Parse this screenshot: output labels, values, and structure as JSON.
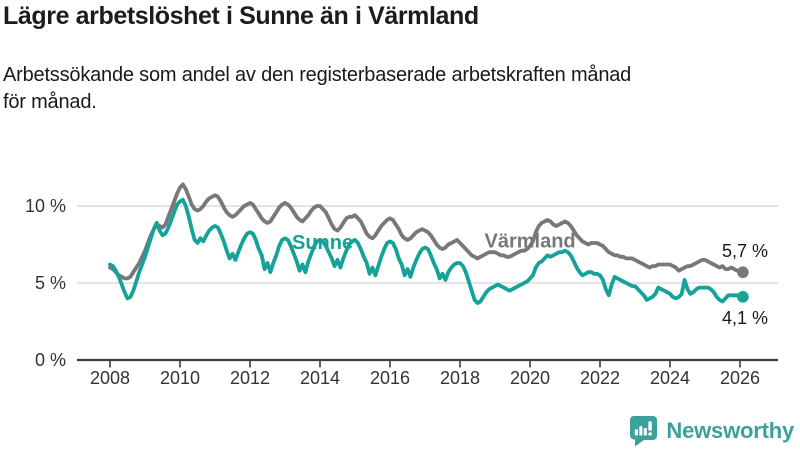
{
  "header": {
    "title": "Lägre arbetslöshet i Sunne än i Värmland",
    "subtitle_lines": [
      "Arbetssökande som andel av den registerbaserade arbetskraften månad",
      "för månad."
    ]
  },
  "footer": {
    "brand": "Newsworthy",
    "brand_color": "#3ba19d"
  },
  "chart_data": {
    "type": "line",
    "title": "Lägre arbetslöshet i Sunne än i Värmland",
    "subtitle": "Arbetssökande som andel av den registerbaserade arbetskraften månad för månad.",
    "x_interval": "monthly",
    "x_start": "2008-01",
    "x_end": "2026-02",
    "x_ticks": [
      2008,
      2010,
      2012,
      2014,
      2016,
      2018,
      2020,
      2022,
      2024,
      2026
    ],
    "y_ticks": [
      {
        "value": 0,
        "label": "0 %"
      },
      {
        "value": 5,
        "label": "5 %"
      },
      {
        "value": 10,
        "label": "10 %"
      }
    ],
    "ylim": [
      0,
      12
    ],
    "grid": "horizontal",
    "legend": "inline-labels",
    "style": {
      "grid_color": "#dcdcdc",
      "axis_color": "#3d3d3d",
      "tick_text_color": "#333333",
      "end_label_color": "#1a1a1a"
    },
    "series": [
      {
        "name": "Värmland",
        "color": "#77777c",
        "end_label": "5,7 %",
        "end_label_side": "above",
        "name_label_pos": {
          "year": 2018.7,
          "value": 7.3
        },
        "values": [
          6.0,
          5.9,
          5.7,
          5.5,
          5.4,
          5.3,
          5.3,
          5.4,
          5.7,
          6.0,
          6.3,
          6.7,
          7.1,
          7.6,
          8.1,
          8.5,
          8.8,
          8.7,
          8.6,
          8.8,
          9.3,
          9.8,
          10.3,
          10.8,
          11.2,
          11.4,
          11.1,
          10.6,
          10.1,
          9.8,
          9.7,
          9.8,
          10.0,
          10.3,
          10.5,
          10.6,
          10.7,
          10.6,
          10.3,
          9.9,
          9.6,
          9.4,
          9.3,
          9.4,
          9.6,
          9.8,
          10.0,
          10.1,
          10.2,
          10.1,
          9.8,
          9.5,
          9.2,
          9.0,
          8.9,
          9.0,
          9.3,
          9.6,
          9.9,
          10.1,
          10.2,
          10.1,
          9.9,
          9.6,
          9.3,
          9.1,
          9.0,
          9.2,
          9.4,
          9.7,
          9.9,
          10.0,
          10.0,
          9.8,
          9.6,
          9.2,
          8.8,
          8.5,
          8.4,
          8.6,
          8.9,
          9.2,
          9.3,
          9.3,
          9.4,
          9.2,
          9.0,
          8.6,
          8.2,
          8.0,
          7.9,
          8.1,
          8.4,
          8.7,
          8.9,
          9.1,
          9.2,
          9.1,
          8.8,
          8.5,
          8.1,
          7.9,
          7.8,
          7.9,
          8.1,
          8.3,
          8.4,
          8.5,
          8.4,
          8.3,
          8.1,
          7.8,
          7.5,
          7.3,
          7.2,
          7.3,
          7.5,
          7.6,
          7.7,
          7.8,
          7.6,
          7.4,
          7.2,
          7.0,
          6.8,
          6.7,
          6.6,
          6.7,
          6.8,
          6.9,
          7.0,
          7.0,
          7.0,
          6.9,
          6.8,
          6.8,
          6.7,
          6.7,
          6.8,
          6.9,
          7.0,
          7.1,
          7.1,
          7.2,
          7.4,
          7.7,
          8.3,
          8.7,
          8.9,
          9.0,
          9.1,
          9.0,
          8.8,
          8.7,
          8.8,
          8.9,
          9.0,
          8.9,
          8.7,
          8.4,
          8.1,
          7.9,
          7.7,
          7.6,
          7.5,
          7.6,
          7.6,
          7.6,
          7.5,
          7.4,
          7.2,
          7.0,
          6.9,
          6.8,
          6.8,
          6.7,
          6.7,
          6.6,
          6.6,
          6.6,
          6.5,
          6.4,
          6.3,
          6.2,
          6.1,
          6.0,
          6.1,
          6.1,
          6.2,
          6.2,
          6.2,
          6.2,
          6.2,
          6.1,
          6.0,
          5.8,
          5.9,
          6.0,
          6.1,
          6.1,
          6.2,
          6.3,
          6.4,
          6.5,
          6.5,
          6.4,
          6.3,
          6.2,
          6.1,
          6.0,
          6.1,
          5.9,
          5.9,
          6.0,
          5.9,
          5.8,
          5.8,
          5.7
        ]
      },
      {
        "name": "Sunne",
        "color": "#15a299",
        "end_label": "4,1 %",
        "end_label_side": "below",
        "name_label_pos": {
          "year": 2013.2,
          "value": 7.2
        },
        "values": [
          6.2,
          6.1,
          5.8,
          5.4,
          4.9,
          4.4,
          4.0,
          4.1,
          4.5,
          5.1,
          5.7,
          6.2,
          6.7,
          7.3,
          7.9,
          8.5,
          8.9,
          8.4,
          8.1,
          8.2,
          8.6,
          9.1,
          9.6,
          10.1,
          10.3,
          10.4,
          10.0,
          9.3,
          8.5,
          7.8,
          7.6,
          7.9,
          7.7,
          8.1,
          8.4,
          8.6,
          8.7,
          8.6,
          8.2,
          7.7,
          7.1,
          6.6,
          6.9,
          6.5,
          7.0,
          7.5,
          7.9,
          8.2,
          8.3,
          8.2,
          7.8,
          7.2,
          6.8,
          5.9,
          6.3,
          5.7,
          6.3,
          6.8,
          7.4,
          7.8,
          7.9,
          7.8,
          7.4,
          6.9,
          6.4,
          5.8,
          6.2,
          5.7,
          6.4,
          6.9,
          7.4,
          7.7,
          7.8,
          7.7,
          7.4,
          7.0,
          6.6,
          6.1,
          6.5,
          6.0,
          6.6,
          7.1,
          7.5,
          7.7,
          7.8,
          7.6,
          7.2,
          6.7,
          6.3,
          5.6,
          6.0,
          5.5,
          6.1,
          6.7,
          7.2,
          7.6,
          7.7,
          7.6,
          7.2,
          6.6,
          6.2,
          5.5,
          5.9,
          5.4,
          6.0,
          6.5,
          6.9,
          7.2,
          7.3,
          7.2,
          6.8,
          6.3,
          5.9,
          5.3,
          5.6,
          5.2,
          5.7,
          6.0,
          6.2,
          6.3,
          6.3,
          6.1,
          5.7,
          5.1,
          4.5,
          3.9,
          3.7,
          3.8,
          4.1,
          4.4,
          4.6,
          4.7,
          4.8,
          4.9,
          4.8,
          4.7,
          4.6,
          4.5,
          4.6,
          4.7,
          4.8,
          4.9,
          5.0,
          5.1,
          5.3,
          5.5,
          6.0,
          6.3,
          6.4,
          6.6,
          6.8,
          6.7,
          6.8,
          6.9,
          7.0,
          7.0,
          7.1,
          7.0,
          6.8,
          6.4,
          6.0,
          5.7,
          5.5,
          5.6,
          5.7,
          5.7,
          5.6,
          5.6,
          5.5,
          5.2,
          4.6,
          4.2,
          4.9,
          5.4,
          5.3,
          5.2,
          5.1,
          5.0,
          4.9,
          4.8,
          4.8,
          4.6,
          4.4,
          4.2,
          3.9,
          4.0,
          4.1,
          4.3,
          4.7,
          4.6,
          4.5,
          4.4,
          4.3,
          4.1,
          4.0,
          4.1,
          4.3,
          5.2,
          4.6,
          4.3,
          4.4,
          4.6,
          4.7,
          4.7,
          4.7,
          4.7,
          4.6,
          4.4,
          4.1,
          3.9,
          3.8,
          4.0,
          4.2,
          4.2,
          4.2,
          4.2,
          4.2,
          4.1
        ]
      }
    ]
  }
}
